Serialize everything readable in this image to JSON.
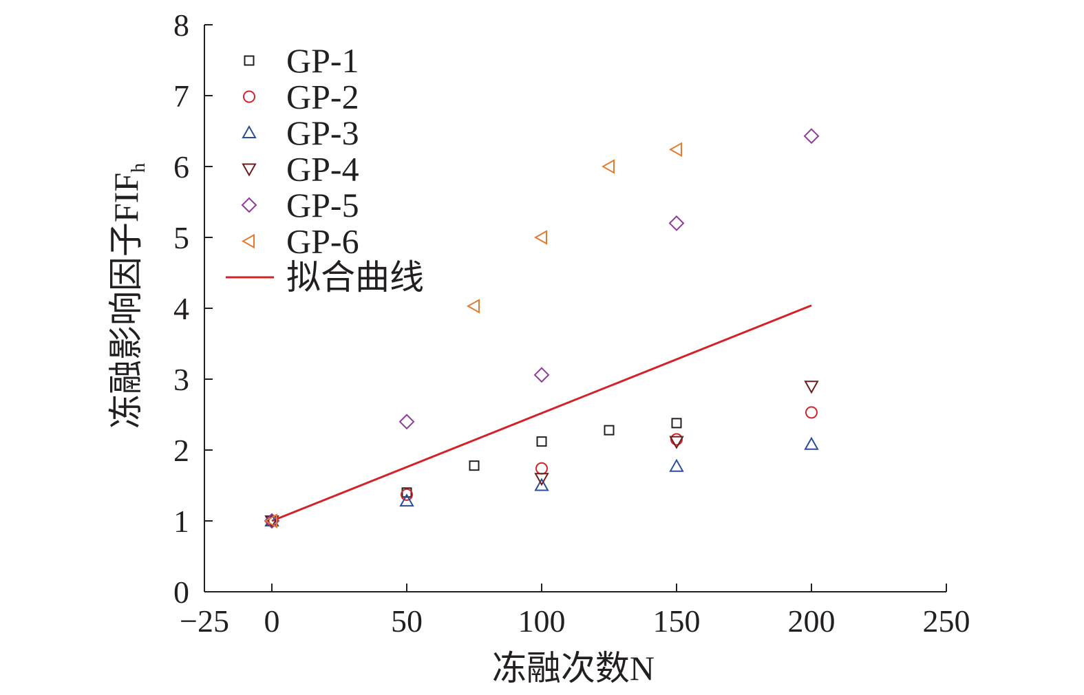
{
  "chart_data": {
    "type": "scatter",
    "xlabel": "冻融次数N",
    "ylabel": "冻融影响因子FIF",
    "ylabel_subscript": "h",
    "xlim": [
      -25,
      250
    ],
    "ylim": [
      0,
      8
    ],
    "x_ticks": [
      -25,
      0,
      50,
      100,
      150,
      200,
      250
    ],
    "y_ticks": [
      0,
      1,
      2,
      3,
      4,
      5,
      6,
      7,
      8
    ],
    "x_tick_labels": [
      "−25",
      "0",
      "50",
      "100",
      "150",
      "200",
      "250"
    ],
    "y_tick_labels": [
      "0",
      "1",
      "2",
      "3",
      "4",
      "5",
      "6",
      "7",
      "8"
    ],
    "grid": false,
    "legend_position": "top-left",
    "series": [
      {
        "name": "GP-1",
        "marker": "square",
        "color": "#231f20",
        "x": [
          0,
          50,
          75,
          100,
          125,
          150
        ],
        "y": [
          1.0,
          1.4,
          1.78,
          2.12,
          2.28,
          2.38
        ]
      },
      {
        "name": "GP-2",
        "marker": "circle",
        "color": "#d2232a",
        "x": [
          0,
          50,
          100,
          150,
          200
        ],
        "y": [
          1.0,
          1.37,
          1.74,
          2.15,
          2.53
        ]
      },
      {
        "name": "GP-3",
        "marker": "triangle-up",
        "color": "#2b4c9b",
        "x": [
          0,
          50,
          100,
          150,
          200
        ],
        "y": [
          1.0,
          1.28,
          1.5,
          1.77,
          2.08
        ]
      },
      {
        "name": "GP-4",
        "marker": "triangle-down",
        "color": "#6b1e1e",
        "x": [
          0,
          100,
          150,
          200
        ],
        "y": [
          1.0,
          1.6,
          2.12,
          2.9
        ]
      },
      {
        "name": "GP-5",
        "marker": "diamond",
        "color": "#8e3c97",
        "x": [
          0,
          50,
          100,
          150,
          200
        ],
        "y": [
          1.0,
          2.4,
          3.06,
          5.2,
          6.43
        ]
      },
      {
        "name": "GP-6",
        "marker": "triangle-left",
        "color": "#e67a2e",
        "x": [
          0,
          75,
          100,
          125,
          150
        ],
        "y": [
          1.0,
          4.03,
          5.0,
          6.0,
          6.24
        ]
      }
    ],
    "fit_line": {
      "name": "拟合曲线",
      "color": "#d2232a",
      "x": [
        0,
        200
      ],
      "y": [
        1.0,
        4.04
      ]
    }
  }
}
